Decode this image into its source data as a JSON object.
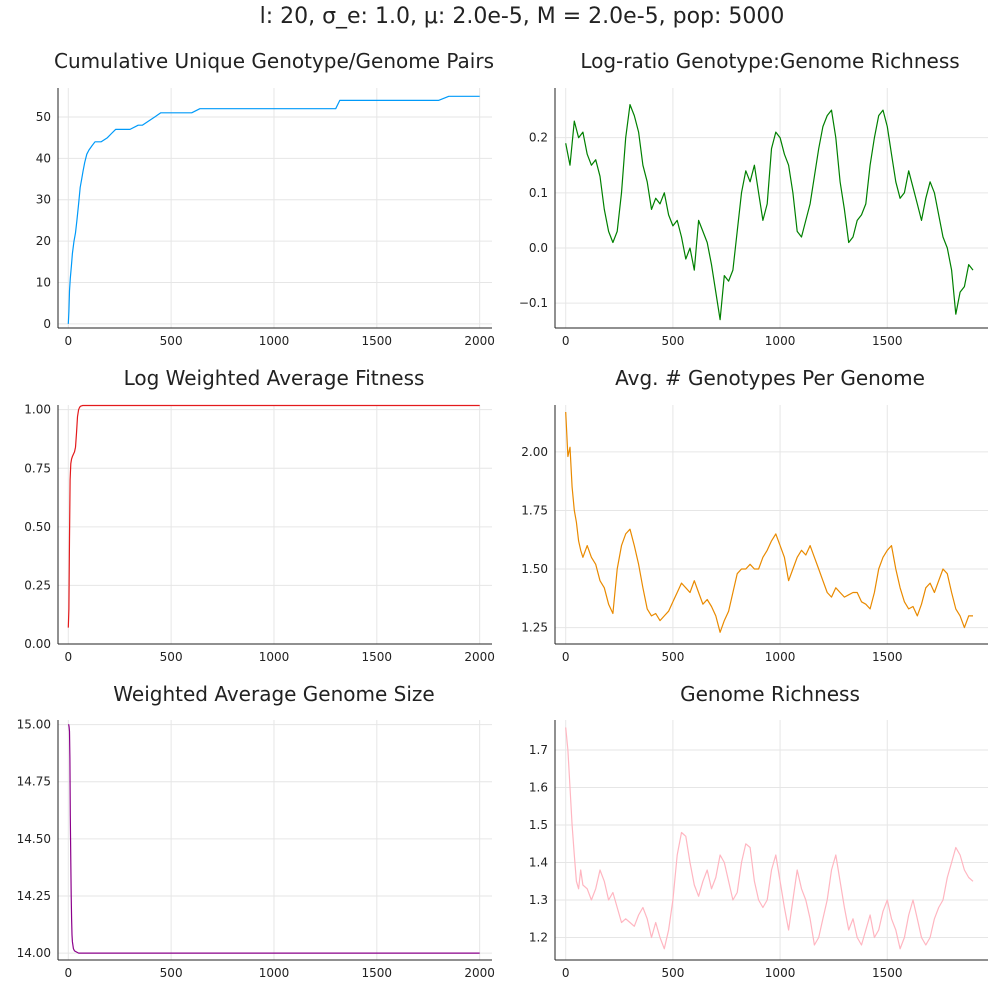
{
  "suptitle": "l: 20, σ_e: 1.0, μ: 2.0e-5, M = 2.0e-5, pop: 5000",
  "chart_data": [
    {
      "type": "line",
      "title": "Cumulative Unique Genotype/Genome Pairs",
      "color": "#009af9",
      "xlim": [
        -50,
        2060
      ],
      "ylim": [
        -1,
        57
      ],
      "xticks": [
        0,
        500,
        1000,
        1500,
        2000
      ],
      "yticks": [
        0,
        10,
        20,
        30,
        40,
        50
      ],
      "ytick_labels": [
        "0",
        "10",
        "20",
        "30",
        "40",
        "50"
      ],
      "x": [
        0,
        3,
        6,
        10,
        15,
        20,
        28,
        35,
        42,
        50,
        58,
        65,
        72,
        80,
        90,
        100,
        115,
        130,
        160,
        190,
        210,
        230,
        260,
        300,
        340,
        360,
        390,
        420,
        450,
        600,
        640,
        700,
        800,
        900,
        1000,
        1100,
        1200,
        1300,
        1320,
        1400,
        1500,
        1600,
        1700,
        1800,
        1850,
        1870,
        1900,
        2000
      ],
      "y": [
        0,
        3,
        8,
        11,
        14,
        17,
        20,
        22,
        25,
        29,
        33,
        35,
        37,
        39,
        41,
        42,
        43,
        44,
        44,
        45,
        46,
        47,
        47,
        47,
        48,
        48,
        49,
        50,
        51,
        51,
        52,
        52,
        52,
        52,
        52,
        52,
        52,
        52,
        54,
        54,
        54,
        54,
        54,
        54,
        55,
        55,
        55,
        55
      ]
    },
    {
      "type": "line",
      "title": "Log-ratio Genotype:Genome Richness",
      "color": "#008000",
      "xlim": [
        -50,
        1970
      ],
      "ylim": [
        -0.145,
        0.29
      ],
      "xticks": [
        0,
        500,
        1000,
        1500
      ],
      "yticks": [
        -0.1,
        0.0,
        0.1,
        0.2
      ],
      "ytick_labels": [
        "−0.1",
        "0.0",
        "0.1",
        "0.2"
      ],
      "x": [
        0,
        20,
        40,
        60,
        80,
        100,
        120,
        140,
        160,
        180,
        200,
        220,
        240,
        260,
        280,
        300,
        320,
        340,
        360,
        380,
        400,
        420,
        440,
        460,
        480,
        500,
        520,
        540,
        560,
        580,
        600,
        620,
        640,
        660,
        680,
        700,
        720,
        740,
        760,
        780,
        800,
        820,
        840,
        860,
        880,
        900,
        920,
        940,
        960,
        980,
        1000,
        1020,
        1040,
        1060,
        1080,
        1100,
        1120,
        1140,
        1160,
        1180,
        1200,
        1220,
        1240,
        1260,
        1280,
        1300,
        1320,
        1340,
        1360,
        1380,
        1400,
        1420,
        1440,
        1460,
        1480,
        1500,
        1520,
        1540,
        1560,
        1580,
        1600,
        1620,
        1640,
        1660,
        1680,
        1700,
        1720,
        1740,
        1760,
        1780,
        1800,
        1820,
        1840,
        1860,
        1880,
        1900
      ],
      "y": [
        0.19,
        0.15,
        0.23,
        0.2,
        0.21,
        0.17,
        0.15,
        0.16,
        0.13,
        0.07,
        0.03,
        0.01,
        0.03,
        0.1,
        0.2,
        0.26,
        0.24,
        0.21,
        0.15,
        0.12,
        0.07,
        0.09,
        0.08,
        0.1,
        0.06,
        0.04,
        0.05,
        0.02,
        -0.02,
        0.0,
        -0.04,
        0.05,
        0.03,
        0.01,
        -0.03,
        -0.08,
        -0.13,
        -0.05,
        -0.06,
        -0.04,
        0.03,
        0.1,
        0.14,
        0.12,
        0.15,
        0.1,
        0.05,
        0.08,
        0.18,
        0.21,
        0.2,
        0.17,
        0.15,
        0.1,
        0.03,
        0.02,
        0.05,
        0.08,
        0.13,
        0.18,
        0.22,
        0.24,
        0.25,
        0.2,
        0.12,
        0.07,
        0.01,
        0.02,
        0.05,
        0.06,
        0.08,
        0.15,
        0.2,
        0.24,
        0.25,
        0.22,
        0.17,
        0.12,
        0.09,
        0.1,
        0.14,
        0.11,
        0.08,
        0.05,
        0.09,
        0.12,
        0.1,
        0.06,
        0.02,
        0.0,
        -0.04,
        -0.12,
        -0.08,
        -0.07,
        -0.03,
        -0.04
      ]
    },
    {
      "type": "line",
      "title": "Log Weighted Average Fitness",
      "color": "#e31a1c",
      "xlim": [
        -50,
        2060
      ],
      "ylim": [
        0.0,
        1.02
      ],
      "xticks": [
        0,
        500,
        1000,
        1500,
        2000
      ],
      "yticks": [
        0.0,
        0.25,
        0.5,
        0.75,
        1.0
      ],
      "ytick_labels": [
        "0.00",
        "0.25",
        "0.50",
        "0.75",
        "1.00"
      ],
      "x": [
        0,
        3,
        6,
        9,
        12,
        16,
        20,
        25,
        30,
        35,
        40,
        45,
        50,
        55,
        60,
        70,
        80,
        100,
        200,
        500,
        1000,
        1500,
        2000
      ],
      "y": [
        0.07,
        0.15,
        0.45,
        0.7,
        0.77,
        0.79,
        0.8,
        0.81,
        0.82,
        0.84,
        0.9,
        0.97,
        1.0,
        1.01,
        1.015,
        1.018,
        1.018,
        1.018,
        1.018,
        1.018,
        1.018,
        1.018,
        1.018
      ]
    },
    {
      "type": "line",
      "title": "Avg. # Genotypes Per Genome",
      "color": "#e98a00",
      "xlim": [
        -50,
        1970
      ],
      "ylim": [
        1.18,
        2.2
      ],
      "xticks": [
        0,
        500,
        1000,
        1500
      ],
      "yticks": [
        1.25,
        1.5,
        1.75,
        2.0
      ],
      "ytick_labels": [
        "1.25",
        "1.50",
        "1.75",
        "2.00"
      ],
      "x": [
        0,
        10,
        20,
        30,
        40,
        50,
        60,
        70,
        80,
        100,
        120,
        140,
        160,
        180,
        200,
        220,
        240,
        260,
        280,
        300,
        320,
        340,
        360,
        380,
        400,
        420,
        440,
        460,
        480,
        500,
        520,
        540,
        560,
        580,
        600,
        620,
        640,
        660,
        680,
        700,
        720,
        740,
        760,
        780,
        800,
        820,
        840,
        860,
        880,
        900,
        920,
        940,
        960,
        980,
        1000,
        1020,
        1040,
        1060,
        1080,
        1100,
        1120,
        1140,
        1160,
        1180,
        1200,
        1220,
        1240,
        1260,
        1280,
        1300,
        1320,
        1340,
        1360,
        1380,
        1400,
        1420,
        1440,
        1460,
        1480,
        1500,
        1520,
        1540,
        1560,
        1580,
        1600,
        1620,
        1640,
        1660,
        1680,
        1700,
        1720,
        1740,
        1760,
        1780,
        1800,
        1820,
        1840,
        1860,
        1880,
        1900
      ],
      "y": [
        2.17,
        1.98,
        2.02,
        1.85,
        1.75,
        1.7,
        1.62,
        1.58,
        1.55,
        1.6,
        1.55,
        1.52,
        1.45,
        1.42,
        1.35,
        1.31,
        1.5,
        1.6,
        1.65,
        1.67,
        1.6,
        1.52,
        1.42,
        1.33,
        1.3,
        1.31,
        1.28,
        1.3,
        1.32,
        1.36,
        1.4,
        1.44,
        1.42,
        1.4,
        1.45,
        1.4,
        1.35,
        1.37,
        1.34,
        1.3,
        1.23,
        1.28,
        1.32,
        1.4,
        1.48,
        1.5,
        1.5,
        1.52,
        1.5,
        1.5,
        1.55,
        1.58,
        1.62,
        1.65,
        1.6,
        1.55,
        1.45,
        1.5,
        1.55,
        1.58,
        1.56,
        1.6,
        1.55,
        1.5,
        1.45,
        1.4,
        1.38,
        1.42,
        1.4,
        1.38,
        1.39,
        1.4,
        1.4,
        1.36,
        1.35,
        1.33,
        1.4,
        1.5,
        1.55,
        1.58,
        1.6,
        1.5,
        1.42,
        1.36,
        1.33,
        1.34,
        1.3,
        1.35,
        1.42,
        1.44,
        1.4,
        1.45,
        1.5,
        1.48,
        1.4,
        1.33,
        1.3,
        1.25,
        1.3,
        1.3
      ]
    },
    {
      "type": "line",
      "title": "Weighted Average Genome Size",
      "color": "#8b008b",
      "xlim": [
        -50,
        2060
      ],
      "ylim": [
        13.97,
        15.02
      ],
      "xticks": [
        0,
        500,
        1000,
        1500,
        2000
      ],
      "yticks": [
        14.0,
        14.25,
        14.5,
        14.75,
        15.0
      ],
      "ytick_labels": [
        "14.00",
        "14.25",
        "14.50",
        "14.75",
        "15.00"
      ],
      "x": [
        0,
        2,
        4,
        6,
        8,
        10,
        12,
        14,
        16,
        18,
        20,
        25,
        30,
        40,
        50,
        70,
        100,
        200,
        500,
        1000,
        1500,
        2000
      ],
      "y": [
        15.0,
        15.0,
        14.99,
        14.97,
        14.85,
        14.6,
        14.4,
        14.25,
        14.15,
        14.08,
        14.05,
        14.02,
        14.01,
        14.005,
        14.0,
        14.0,
        14.0,
        14.0,
        14.0,
        14.0,
        14.0,
        14.0
      ]
    },
    {
      "type": "line",
      "title": "Genome Richness",
      "color": "#ffb6c1",
      "xlim": [
        -50,
        1970
      ],
      "ylim": [
        1.14,
        1.78
      ],
      "xticks": [
        0,
        500,
        1000,
        1500
      ],
      "yticks": [
        1.2,
        1.3,
        1.4,
        1.5,
        1.6,
        1.7
      ],
      "ytick_labels": [
        "1.2",
        "1.3",
        "1.4",
        "1.5",
        "1.6",
        "1.7"
      ],
      "x": [
        0,
        10,
        20,
        30,
        40,
        50,
        60,
        70,
        80,
        100,
        120,
        140,
        160,
        180,
        200,
        220,
        240,
        260,
        280,
        300,
        320,
        340,
        360,
        380,
        400,
        420,
        440,
        460,
        480,
        500,
        520,
        540,
        560,
        580,
        600,
        620,
        640,
        660,
        680,
        700,
        720,
        740,
        760,
        780,
        800,
        820,
        840,
        860,
        880,
        900,
        920,
        940,
        960,
        980,
        1000,
        1020,
        1040,
        1060,
        1080,
        1100,
        1120,
        1140,
        1160,
        1180,
        1200,
        1220,
        1240,
        1260,
        1280,
        1300,
        1320,
        1340,
        1360,
        1380,
        1400,
        1420,
        1440,
        1460,
        1480,
        1500,
        1520,
        1540,
        1560,
        1580,
        1600,
        1620,
        1640,
        1660,
        1680,
        1700,
        1720,
        1740,
        1760,
        1780,
        1800,
        1820,
        1840,
        1860,
        1880,
        1900
      ],
      "y": [
        1.76,
        1.7,
        1.6,
        1.5,
        1.42,
        1.35,
        1.33,
        1.38,
        1.34,
        1.33,
        1.3,
        1.33,
        1.38,
        1.35,
        1.3,
        1.32,
        1.28,
        1.24,
        1.25,
        1.24,
        1.23,
        1.26,
        1.28,
        1.25,
        1.2,
        1.24,
        1.2,
        1.17,
        1.22,
        1.3,
        1.42,
        1.48,
        1.47,
        1.4,
        1.34,
        1.31,
        1.35,
        1.38,
        1.33,
        1.36,
        1.42,
        1.4,
        1.35,
        1.3,
        1.32,
        1.4,
        1.45,
        1.44,
        1.35,
        1.3,
        1.28,
        1.3,
        1.38,
        1.42,
        1.35,
        1.28,
        1.22,
        1.3,
        1.38,
        1.33,
        1.3,
        1.25,
        1.18,
        1.2,
        1.25,
        1.3,
        1.38,
        1.42,
        1.35,
        1.28,
        1.22,
        1.25,
        1.2,
        1.18,
        1.22,
        1.26,
        1.2,
        1.22,
        1.27,
        1.3,
        1.25,
        1.22,
        1.17,
        1.2,
        1.26,
        1.3,
        1.25,
        1.2,
        1.18,
        1.2,
        1.25,
        1.28,
        1.3,
        1.36,
        1.4,
        1.44,
        1.42,
        1.38,
        1.36,
        1.35
      ]
    }
  ]
}
